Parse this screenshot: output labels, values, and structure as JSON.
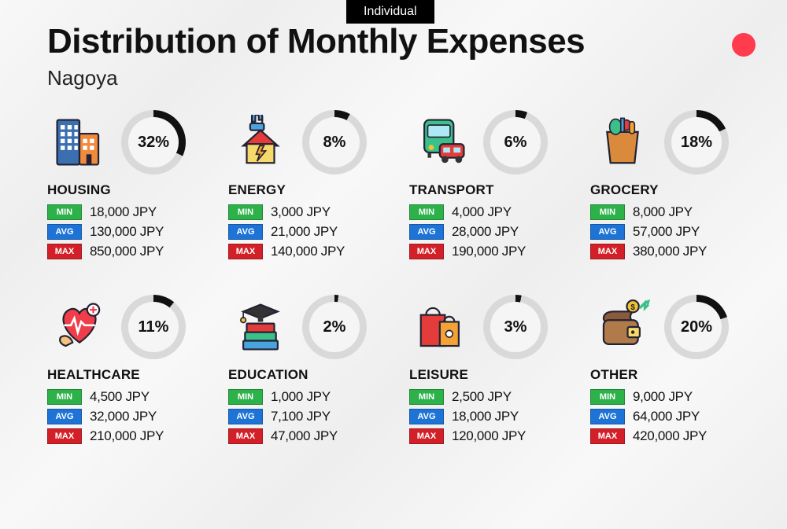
{
  "tab_label": "Individual",
  "title": "Distribution of Monthly Expenses",
  "subtitle": "Nagoya",
  "dot_color": "#ff3b4e",
  "ring_track_color": "#d9d9d9",
  "ring_fill_color": "#111111",
  "ring_bg": "#f5f5f5",
  "badges": {
    "min": {
      "label": "MIN",
      "color": "#2db24a"
    },
    "avg": {
      "label": "AVG",
      "color": "#1e74d6"
    },
    "max": {
      "label": "MAX",
      "color": "#d32028"
    }
  },
  "currency": "JPY",
  "categories": [
    {
      "key": "housing",
      "name": "HOUSING",
      "percent": 32,
      "min": "18,000",
      "avg": "130,000",
      "max": "850,000"
    },
    {
      "key": "energy",
      "name": "ENERGY",
      "percent": 8,
      "min": "3,000",
      "avg": "21,000",
      "max": "140,000"
    },
    {
      "key": "transport",
      "name": "TRANSPORT",
      "percent": 6,
      "min": "4,000",
      "avg": "28,000",
      "max": "190,000"
    },
    {
      "key": "grocery",
      "name": "GROCERY",
      "percent": 18,
      "min": "8,000",
      "avg": "57,000",
      "max": "380,000"
    },
    {
      "key": "healthcare",
      "name": "HEALTHCARE",
      "percent": 11,
      "min": "4,500",
      "avg": "32,000",
      "max": "210,000"
    },
    {
      "key": "education",
      "name": "EDUCATION",
      "percent": 2,
      "min": "1,000",
      "avg": "7,100",
      "max": "47,000"
    },
    {
      "key": "leisure",
      "name": "LEISURE",
      "percent": 3,
      "min": "2,500",
      "avg": "18,000",
      "max": "120,000"
    },
    {
      "key": "other",
      "name": "OTHER",
      "percent": 20,
      "min": "9,000",
      "avg": "64,000",
      "max": "420,000"
    }
  ]
}
